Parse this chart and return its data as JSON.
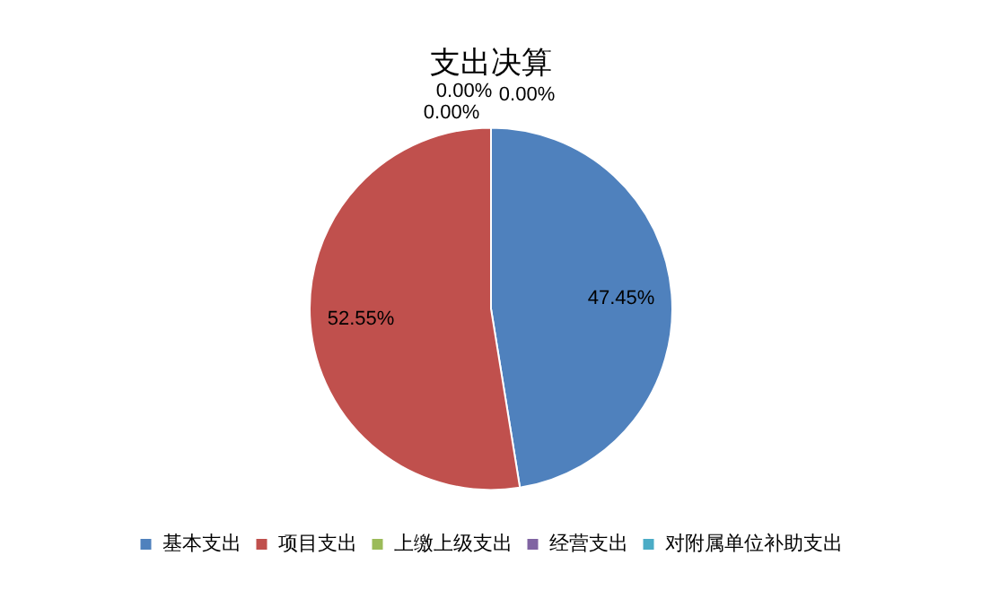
{
  "chart_data": {
    "type": "pie",
    "title": "支出决算",
    "categories": [
      "基本支出",
      "项目支出",
      "上缴上级支出",
      "经营支出",
      "对附属单位补助支出"
    ],
    "values": [
      47.45,
      52.55,
      0,
      0,
      0
    ],
    "colors": [
      "#4f81bd",
      "#c0504d",
      "#9bbb59",
      "#8064a2",
      "#4bacc6"
    ],
    "value_labels": [
      "47.45%",
      "52.55%",
      "0.00%",
      "0.00%",
      "0.00%"
    ],
    "legend": "bottom"
  }
}
